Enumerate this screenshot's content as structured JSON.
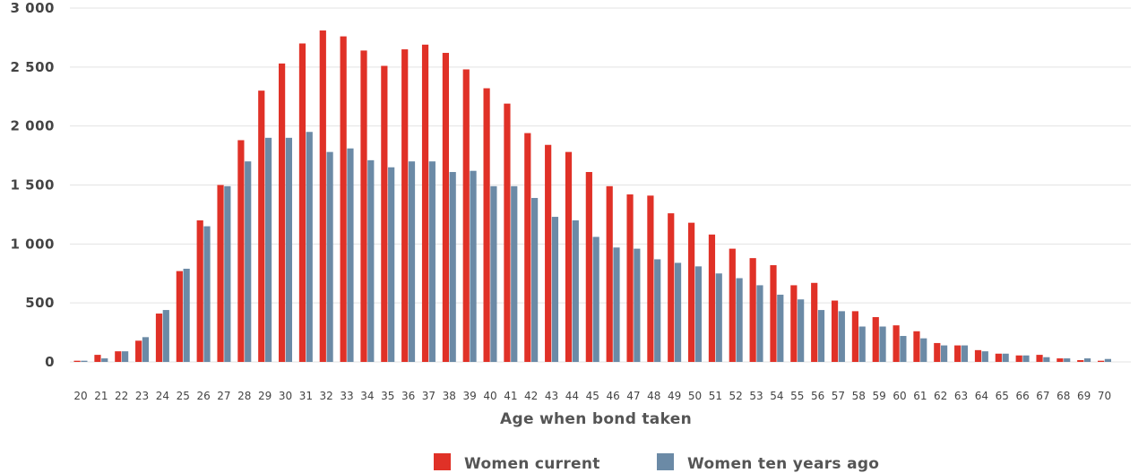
{
  "chart_data": {
    "type": "bar",
    "title": "",
    "xlabel": "Age when bond taken",
    "ylabel": "",
    "ylim": [
      0,
      3000
    ],
    "yticks": [
      0,
      500,
      1000,
      1500,
      2000,
      2500,
      3000
    ],
    "ytick_labels": [
      "0",
      "500",
      "1 000",
      "1 500",
      "2 000",
      "2 500",
      "3 000"
    ],
    "grid": true,
    "legend_position": "bottom",
    "categories": [
      "20",
      "21",
      "22",
      "23",
      "24",
      "25",
      "26",
      "27",
      "28",
      "29",
      "30",
      "31",
      "32",
      "33",
      "34",
      "35",
      "36",
      "37",
      "38",
      "39",
      "40",
      "41",
      "42",
      "43",
      "44",
      "45",
      "46",
      "47",
      "48",
      "49",
      "50",
      "51",
      "52",
      "53",
      "54",
      "55",
      "56",
      "57",
      "58",
      "59",
      "60",
      "61",
      "62",
      "63",
      "64",
      "65",
      "66",
      "67",
      "68",
      "69",
      "70"
    ],
    "series": [
      {
        "name": "Women current",
        "color": "#e03127",
        "values": [
          10,
          60,
          90,
          180,
          410,
          770,
          1200,
          1500,
          1880,
          2300,
          2530,
          2700,
          2810,
          2760,
          2640,
          2510,
          2650,
          2690,
          2620,
          2480,
          2320,
          2190,
          1940,
          1840,
          1780,
          1610,
          1490,
          1420,
          1410,
          1260,
          1180,
          1080,
          960,
          880,
          820,
          650,
          670,
          520,
          430,
          380,
          310,
          260,
          160,
          140,
          100,
          70,
          55,
          60,
          30,
          15,
          10
        ]
      },
      {
        "name": "Women ten years ago",
        "color": "#6b8aa6",
        "values": [
          10,
          30,
          90,
          210,
          440,
          790,
          1150,
          1490,
          1700,
          1900,
          1900,
          1950,
          1780,
          1810,
          1710,
          1650,
          1700,
          1700,
          1610,
          1620,
          1490,
          1490,
          1390,
          1230,
          1200,
          1060,
          970,
          960,
          870,
          840,
          810,
          750,
          710,
          650,
          570,
          530,
          440,
          430,
          300,
          300,
          220,
          200,
          140,
          140,
          90,
          70,
          55,
          40,
          30,
          30,
          25
        ]
      }
    ]
  }
}
